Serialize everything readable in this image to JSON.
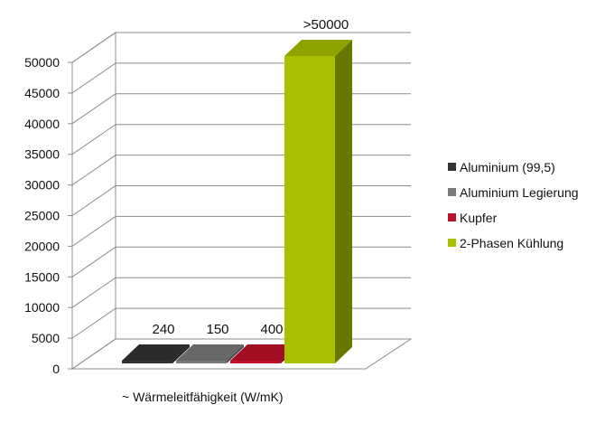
{
  "chart_data": {
    "type": "bar",
    "style": "3d-clustered-column",
    "categories": [
      "~ Wärmeleitfähigkeit (W/mK)"
    ],
    "xlabel": "~ Wärmeleitfähigkeit (W/mK)",
    "ylabel": "",
    "ylim": [
      0,
      50000
    ],
    "yticks": [
      "0",
      "5000",
      "10000",
      "15000",
      "20000",
      "25000",
      "30000",
      "35000",
      "40000",
      "45000",
      "50000"
    ],
    "grid": true,
    "legend_position": "right",
    "series": [
      {
        "name": "Aluminium (99,5)",
        "values": [
          240
        ],
        "label": "240",
        "color": "#333333"
      },
      {
        "name": "Aluminium Legierung",
        "values": [
          150
        ],
        "label": "150",
        "color": "#7a7a7a"
      },
      {
        "name": "Kupfer",
        "values": [
          400
        ],
        "label": "400",
        "color": "#c0102a"
      },
      {
        "name": "2-Phasen Kühlung",
        "values": [
          50000
        ],
        "label": ">50000",
        "color": "#a8c000"
      }
    ]
  }
}
